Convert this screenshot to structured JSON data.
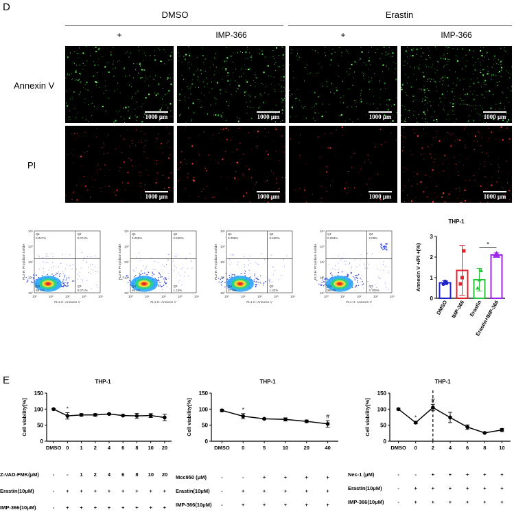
{
  "panel_d": {
    "letter": "D",
    "groups": [
      "DMSO",
      "Erastin"
    ],
    "columns": [
      "+",
      "IMP-366",
      "+",
      "IMP-366"
    ],
    "rows": [
      "Annexin V",
      "PI"
    ],
    "scalebar": "1000 μm",
    "flow": [
      {
        "q1": "0.047%",
        "q2": "0.074%",
        "q3": "0.071%",
        "q4": "98.1%"
      },
      {
        "q1": "0.259%",
        "q2": "0.545%",
        "q3": "1.10%",
        "q4": "98.1%"
      },
      {
        "q1": "0.098%",
        "q2": "0.638%",
        "q3": "1.33%",
        "q4": "97.9%"
      },
      {
        "q1": "0.253%",
        "q2": "2.06%",
        "q3": "0.709%",
        "q4": "96.0%"
      }
    ],
    "flow_quadrants": [
      "Q1",
      "Q2",
      "Q3",
      "Q4"
    ],
    "flow_xlabel": "FL1-H: Annexin V",
    "flow_ylabel": "FL2-H: Propidium Iodide",
    "flow_ticks": [
      "10⁰",
      "10¹",
      "10²",
      "10³",
      "10⁴"
    ]
  },
  "panel_e": {
    "letter": "E",
    "tables": [
      {
        "rows": [
          {
            "label": "Z-VAD-FMK(μM)",
            "cells": [
              "-",
              "-",
              "1",
              "2",
              "4",
              "6",
              "8",
              "10",
              "20"
            ]
          },
          {
            "label": "Erastin(10μM)",
            "cells": [
              "-",
              "+",
              "+",
              "+",
              "+",
              "+",
              "+",
              "+",
              "+"
            ]
          },
          {
            "label": "IMP-366(10μM)",
            "cells": [
              "-",
              "+",
              "+",
              "+",
              "+",
              "+",
              "+",
              "+",
              "+"
            ]
          }
        ]
      },
      {
        "rows": [
          {
            "label": "Mcc950 (μM)",
            "cells": [
              "-",
              "-",
              "+",
              "+",
              "+",
              "+"
            ]
          },
          {
            "label": "Erastin(10μM)",
            "cells": [
              "-",
              "+",
              "+",
              "+",
              "+",
              "+"
            ]
          },
          {
            "label": "IMP-366(10μM)",
            "cells": [
              "-",
              "+",
              "+",
              "+",
              "+",
              "+"
            ]
          }
        ]
      },
      {
        "rows": [
          {
            "label": "Nec-1 (μM)",
            "cells": [
              "-",
              "-",
              "+",
              "+",
              "+",
              "+",
              "+"
            ]
          },
          {
            "label": "Erastin(10μM)",
            "cells": [
              "-",
              "+",
              "+",
              "+",
              "+",
              "+",
              "+"
            ]
          },
          {
            "label": "IMP-366(10μM)",
            "cells": [
              "-",
              "+",
              "+",
              "+",
              "+",
              "+",
              "+"
            ]
          }
        ]
      }
    ]
  },
  "chart_data": [
    {
      "type": "bar",
      "title": "THP-1",
      "xlabel": "",
      "ylabel": "Annexin V +/PI +(%)",
      "categories": [
        "DMSO",
        "IMP-366",
        "Erastin",
        "Erastin+IMP-366"
      ],
      "values": [
        0.75,
        1.35,
        0.9,
        2.1
      ],
      "errors": [
        0.1,
        1.2,
        0.55,
        0.1
      ],
      "points": [
        [
          0.68,
          0.82,
          0.75
        ],
        [
          0.7,
          1.0,
          2.3
        ],
        [
          0.5,
          0.9,
          1.35
        ],
        [
          2.05,
          2.2,
          2.05
        ]
      ],
      "colors": [
        "#1f24c8",
        "#e0202b",
        "#2ac43a",
        "#a020f0"
      ],
      "ylim": [
        0,
        3
      ],
      "yticks": [
        0,
        1,
        2,
        3
      ],
      "annotations": [
        {
          "between": [
            2,
            3
          ],
          "text": "*"
        }
      ]
    },
    {
      "type": "line",
      "title": "THP-1",
      "xlabel": "",
      "ylabel": "Cell viability[%]",
      "categories": [
        "DMSO",
        "0",
        "1",
        "2",
        "4",
        "6",
        "8",
        "10",
        "20"
      ],
      "values": [
        100,
        79,
        82,
        82,
        85,
        80,
        79,
        80,
        74
      ],
      "errors": [
        2,
        10,
        4,
        4,
        2,
        2,
        8,
        6,
        10
      ],
      "ylim": [
        0,
        150
      ],
      "yticks": [
        0,
        50,
        100,
        150
      ],
      "annotations": [
        {
          "index": 1,
          "text": "*"
        }
      ]
    },
    {
      "type": "line",
      "title": "THP-1",
      "xlabel": "",
      "ylabel": "Cell viability[%]",
      "categories": [
        "DMSO",
        "0",
        "5",
        "10",
        "20",
        "40"
      ],
      "values": [
        96,
        78,
        70,
        68,
        62,
        54
      ],
      "errors": [
        4,
        8,
        2,
        5,
        4,
        10
      ],
      "ylim": [
        0,
        150
      ],
      "yticks": [
        0,
        50,
        100,
        150
      ],
      "annotations": [
        {
          "index": 1,
          "text": "*"
        },
        {
          "index": 5,
          "text": "#"
        }
      ]
    },
    {
      "type": "line",
      "title": "THP-1",
      "xlabel": "",
      "ylabel": "Cell viability[%]",
      "categories": [
        "DMSO",
        "0",
        "2",
        "4",
        "6",
        "8",
        "10"
      ],
      "values": [
        100,
        58,
        105,
        74,
        44,
        26,
        35
      ],
      "errors": [
        3,
        3,
        10,
        16,
        7,
        2,
        5
      ],
      "ylim": [
        0,
        150
      ],
      "yticks": [
        0,
        50,
        100,
        150
      ],
      "annotations": [
        {
          "index": 1,
          "text": "*"
        },
        {
          "index": 2,
          "text": "#"
        }
      ],
      "dashed_line_at_index": 2
    }
  ]
}
